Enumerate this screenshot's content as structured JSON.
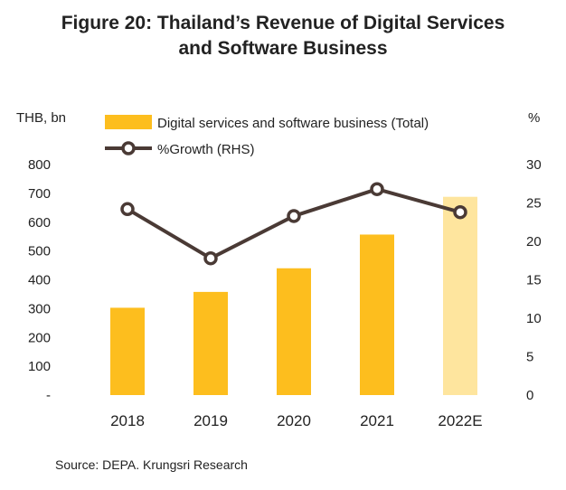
{
  "chart_data": {
    "type": "bar",
    "title": [
      "Figure 20: Thailand’s  Revenue of Digital Services",
      "and Software Business"
    ],
    "left_axis_label": "THB, bn",
    "right_axis_label": "%",
    "categories": [
      "2018",
      "2019",
      "2020",
      "2021",
      "2022E"
    ],
    "series": [
      {
        "name": "Digital services and software business (Total)",
        "type": "bar",
        "axis": "left",
        "values": [
          303,
          358,
          440,
          557,
          688
        ],
        "color": "#FDBE1E",
        "estimate_color": "#FEE59E"
      },
      {
        "name": "%Growth (RHS)",
        "type": "line",
        "axis": "right",
        "values": [
          24.2,
          17.8,
          23.3,
          26.8,
          23.8
        ],
        "color": "#4A3A35"
      }
    ],
    "ylim_left": [
      0,
      800
    ],
    "ylim_right": [
      0,
      30
    ],
    "y_ticks_left": [
      "-",
      "100",
      "200",
      "300",
      "400",
      "500",
      "600",
      "700",
      "800"
    ],
    "y_ticks_right": [
      "0",
      "5",
      "10",
      "15",
      "20",
      "25",
      "30"
    ],
    "grid": false,
    "legend_position": "top"
  },
  "source": "Source: DEPA. Krungsri Research"
}
